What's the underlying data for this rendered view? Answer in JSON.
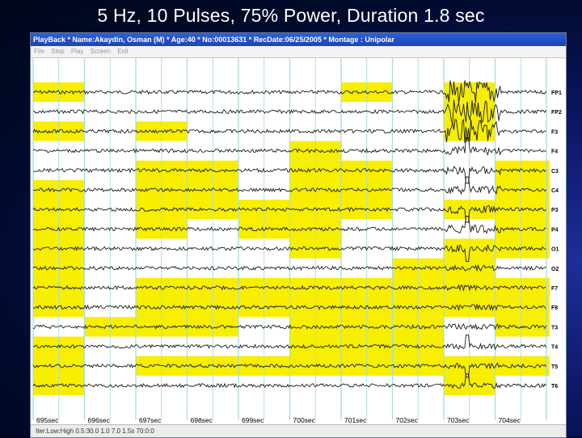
{
  "slide": {
    "title": "5 Hz, 10 Pulses, 75% Power, Duration 1.8 sec"
  },
  "window": {
    "title": "PlayBack * Name:Akaydin, Osman (M) * Age:40 * No:00013631 * RecDate:06/25/2005 * Montage : Unipolar"
  },
  "menu": [
    "File",
    "Step",
    "Play",
    "Screen",
    "Exit"
  ],
  "status": "Iter:Low:High  0.5:30.0  1.0  7.0  1.5s  70:0:0",
  "colors": {
    "highlight": "#f7ee00",
    "gridline": "#a8dcdc",
    "trace": "#1a1a1a"
  },
  "channels": [
    "FP1",
    "FP2",
    "F3",
    "F4",
    "C3",
    "C4",
    "P3",
    "P4",
    "O1",
    "O2",
    "F7",
    "F8",
    "T3",
    "T4",
    "T5",
    "T6"
  ],
  "time_labels": [
    "695sec",
    "696sec",
    "697sec",
    "698sec",
    "699sec",
    "700sec",
    "701sec",
    "702sec",
    "703sec",
    "704sec"
  ],
  "highlight_pattern": [
    [
      1,
      0,
      0,
      0,
      0,
      0,
      1,
      0,
      1,
      0
    ],
    [
      0,
      0,
      0,
      0,
      0,
      0,
      0,
      0,
      1,
      0
    ],
    [
      1,
      0,
      1,
      0,
      0,
      0,
      0,
      0,
      1,
      0
    ],
    [
      0,
      0,
      0,
      0,
      0,
      1,
      0,
      0,
      0,
      0
    ],
    [
      0,
      0,
      1,
      1,
      0,
      1,
      1,
      0,
      0,
      1
    ],
    [
      1,
      0,
      1,
      1,
      0,
      1,
      1,
      0,
      0,
      1
    ],
    [
      1,
      0,
      1,
      1,
      1,
      1,
      1,
      0,
      1,
      1
    ],
    [
      1,
      0,
      1,
      0,
      1,
      1,
      0,
      0,
      0,
      1
    ],
    [
      1,
      0,
      0,
      0,
      0,
      1,
      0,
      0,
      1,
      1
    ],
    [
      1,
      0,
      0,
      0,
      0,
      0,
      0,
      1,
      1,
      0
    ],
    [
      1,
      0,
      1,
      1,
      1,
      1,
      1,
      1,
      1,
      1
    ],
    [
      1,
      0,
      1,
      1,
      1,
      1,
      1,
      1,
      1,
      1
    ],
    [
      0,
      1,
      1,
      1,
      0,
      1,
      1,
      1,
      0,
      1
    ],
    [
      1,
      0,
      0,
      0,
      0,
      1,
      1,
      1,
      0,
      0
    ],
    [
      1,
      0,
      1,
      1,
      1,
      1,
      1,
      1,
      1,
      1
    ],
    [
      1,
      0,
      0,
      0,
      0,
      0,
      0,
      0,
      1,
      0
    ]
  ]
}
